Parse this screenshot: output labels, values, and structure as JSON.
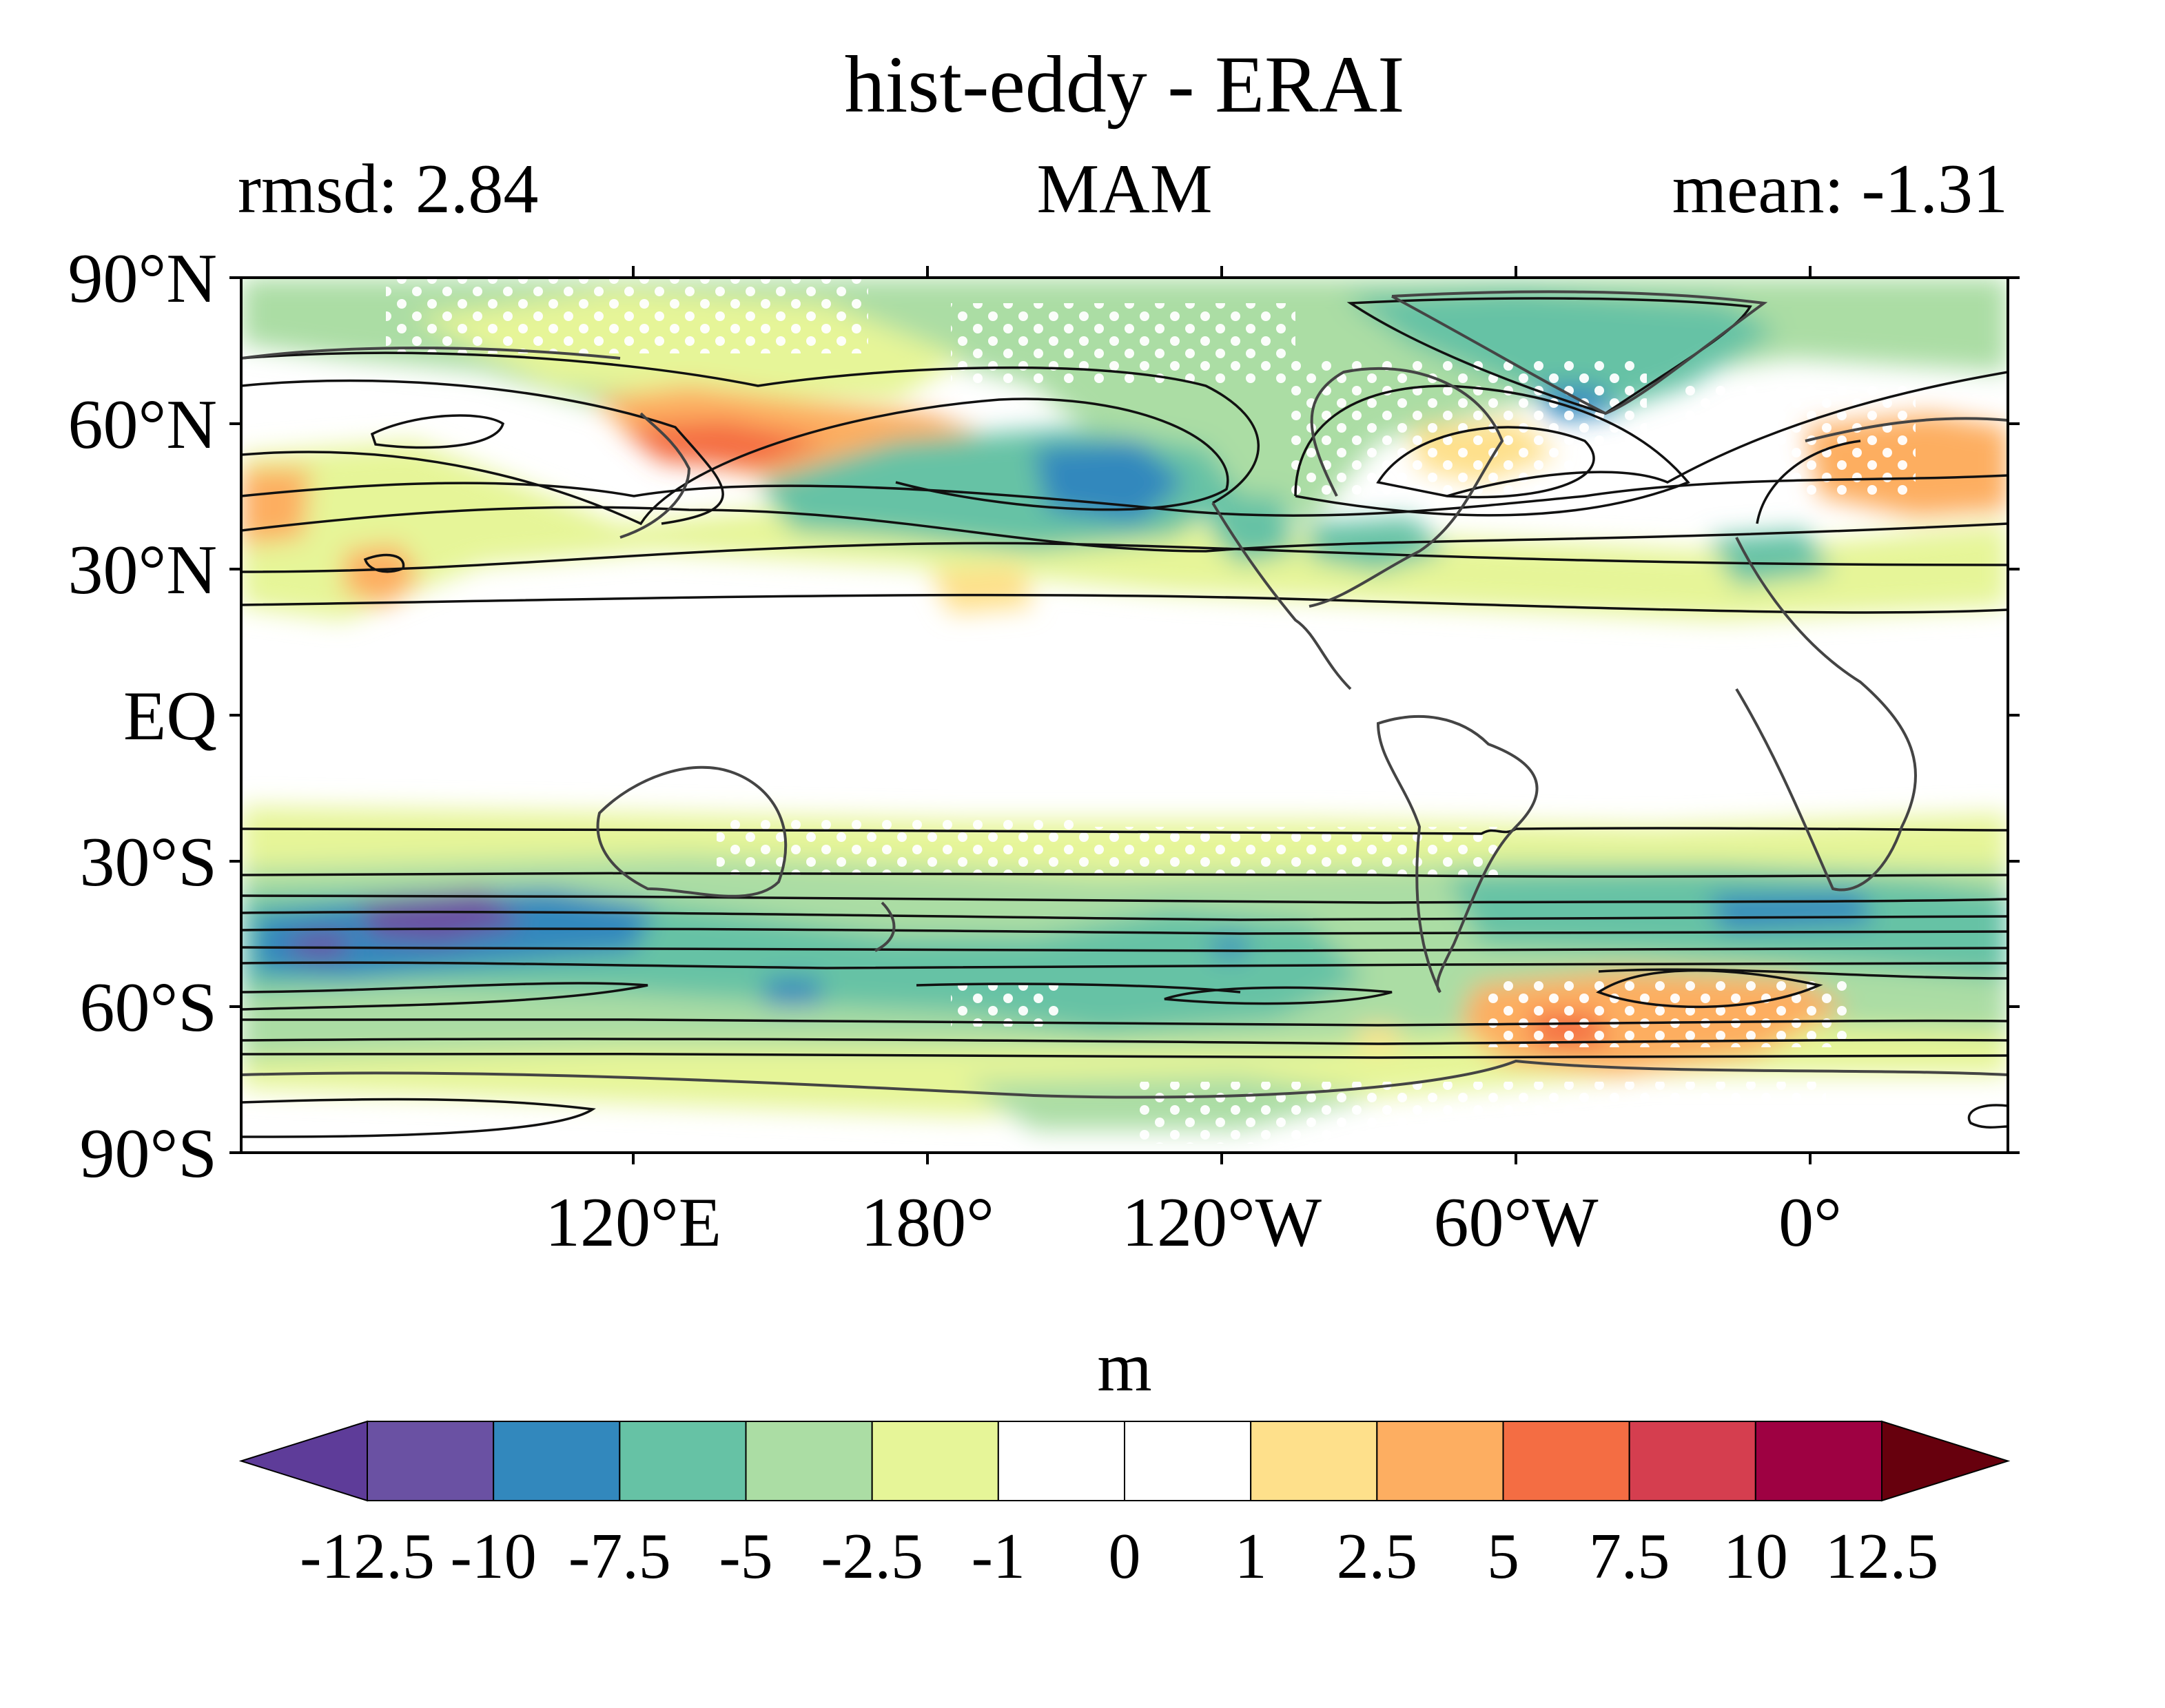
{
  "title": "hist-eddy - ERAI",
  "subtitle_left": "rmsd: 2.84",
  "subtitle_center": "MAM",
  "subtitle_right": "mean: -1.31",
  "lat_labels": [
    "90°N",
    "60°N",
    "30°N",
    "EQ",
    "30°S",
    "60°S",
    "90°S"
  ],
  "lon_labels": [
    "120°E",
    "180°",
    "120°W",
    "60°W",
    "0°"
  ],
  "colorbar": {
    "unit": "m",
    "tick_labels": [
      "-12.5",
      "-10",
      "-7.5",
      "-5",
      "-2.5",
      "-1",
      "0",
      "1",
      "2.5",
      "5",
      "7.5",
      "10",
      "12.5"
    ],
    "colors": [
      "#5e3c99",
      "#6a51a3",
      "#3288bd",
      "#66c2a5",
      "#abdda4",
      "#e6f598",
      "#ffffff",
      "#ffffff",
      "#fee08b",
      "#fdae61",
      "#f46d43",
      "#d53e4f",
      "#9e0142",
      "#67000d"
    ]
  },
  "chart_data": {
    "type": "heatmap",
    "title": "hist-eddy - ERAI",
    "subtitle": "MAM",
    "statistics": {
      "rmsd": 2.84,
      "mean": -1.31
    },
    "projection": "equirectangular, longitude 40°E to 400°E (40°E repeated)",
    "lon_ticks": [
      120,
      180,
      240,
      300,
      360
    ],
    "lat_ticks": [
      90,
      60,
      30,
      0,
      -30,
      -60,
      -90
    ],
    "colorbar_levels": [
      -12.5,
      -10,
      -7.5,
      -5,
      -2.5,
      -1,
      0,
      1,
      2.5,
      5,
      7.5,
      10,
      12.5
    ],
    "unit": "m",
    "overlays": [
      "stippling (white dots)",
      "black contours",
      "coastlines"
    ],
    "anomaly_regions": [
      {
        "lon": [
          130,
          170
        ],
        "lat": [
          48,
          60
        ],
        "level": 5
      },
      {
        "lon": [
          70,
          90
        ],
        "lat": [
          28,
          36
        ],
        "level": 2.5
      },
      {
        "lon": [
          175,
          240
        ],
        "lat": [
          36,
          50
        ],
        "level": -5
      },
      {
        "lon": [
          220,
          245
        ],
        "lat": [
          40,
          48
        ],
        "level": -7.5
      },
      {
        "lon": [
          285,
          330
        ],
        "lat": [
          65,
          80
        ],
        "level": -5
      },
      {
        "lon": [
          340,
          400
        ],
        "lat": [
          42,
          56
        ],
        "level": 5
      },
      {
        "lon": [
          60,
          200
        ],
        "lat": [
          -50,
          -38
        ],
        "level": -7.5
      },
      {
        "lon": [
          90,
          115
        ],
        "lat": [
          -45,
          -40
        ],
        "level": -10
      },
      {
        "lon": [
          340,
          370
        ],
        "lat": [
          -44,
          -38
        ],
        "level": -7.5
      },
      {
        "lon": [
          295,
          345
        ],
        "lat": [
          -68,
          -54
        ],
        "level": 5
      },
      {
        "lon": [
          305,
          318
        ],
        "lat": [
          -65,
          -60
        ],
        "level": 7.5
      }
    ]
  }
}
